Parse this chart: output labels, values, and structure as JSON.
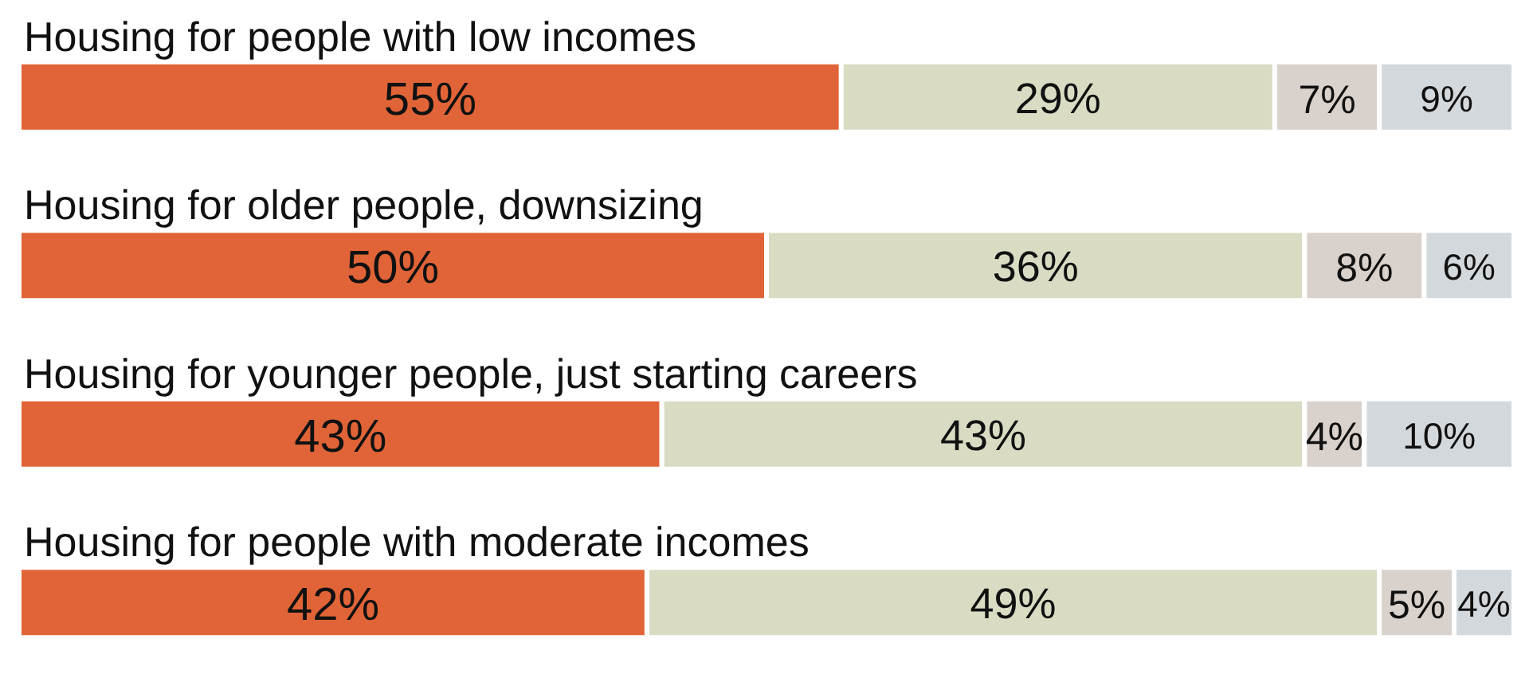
{
  "chart_data": {
    "type": "bar",
    "orientation": "horizontal",
    "stacked": true,
    "categories": [
      "Housing for people with low incomes",
      "Housing for older people, downsizing",
      "Housing for younger people, just starting careers",
      "Housing for people with moderate incomes"
    ],
    "series": [
      {
        "color": "#e06437",
        "values": [
          55,
          50,
          43,
          42
        ],
        "value_labels": [
          "55%",
          "50%",
          "43%",
          "42%"
        ]
      },
      {
        "color": "#d9dcc3",
        "values": [
          29,
          36,
          43,
          49
        ],
        "value_labels": [
          "29%",
          "36%",
          "43%",
          "49%"
        ]
      },
      {
        "color": "#d9d1cc",
        "values": [
          7,
          8,
          4,
          5
        ],
        "value_labels": [
          "7%",
          "8%",
          "4%",
          "5%"
        ]
      },
      {
        "color": "#d3d8dc",
        "values": [
          9,
          6,
          10,
          4
        ],
        "value_labels": [
          "9%",
          "6%",
          "10%",
          "4%"
        ]
      }
    ]
  }
}
